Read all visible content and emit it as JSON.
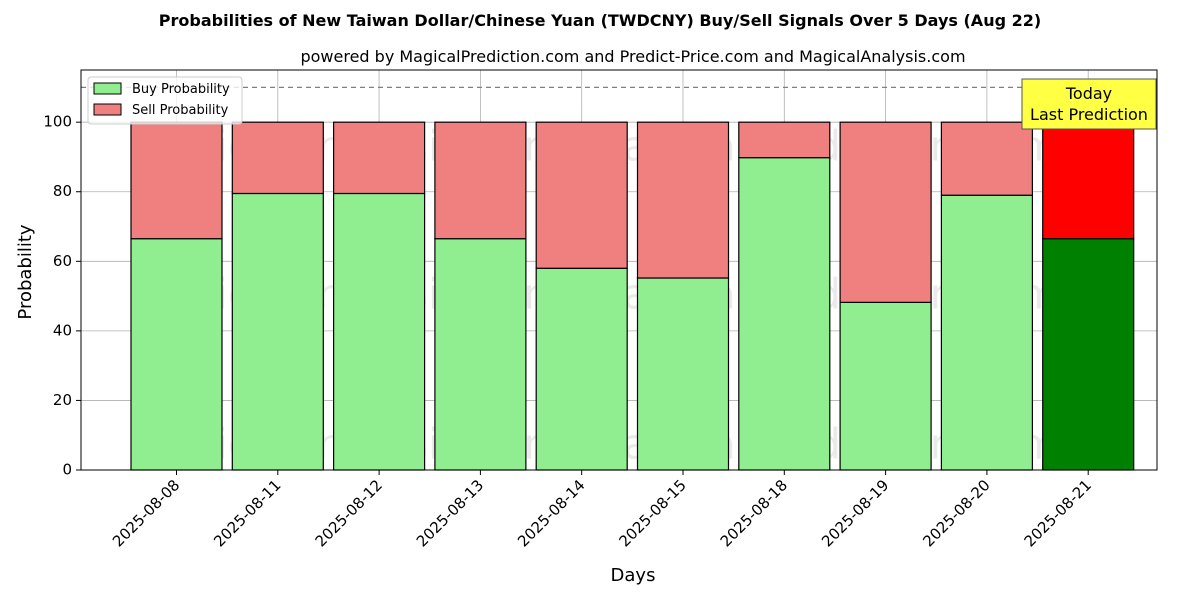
{
  "chart_data": {
    "type": "bar",
    "stacked": true,
    "title": "Probabilities of New Taiwan Dollar/Chinese Yuan (TWDCNY) Buy/Sell Signals Over 5 Days (Aug 22)",
    "subtitle": "powered by MagicalPrediction.com and Predict-Price.com and MagicalAnalysis.com",
    "xlabel": "Days",
    "ylabel": "Probability",
    "ylim": [
      0,
      115
    ],
    "yticks": [
      0,
      20,
      40,
      60,
      80,
      100
    ],
    "reference_line": 110,
    "grid": true,
    "legend_position": "top-left",
    "categories": [
      "2025-08-08",
      "2025-08-11",
      "2025-08-12",
      "2025-08-13",
      "2025-08-14",
      "2025-08-15",
      "2025-08-18",
      "2025-08-19",
      "2025-08-20",
      "2025-08-21"
    ],
    "series": [
      {
        "name": "Buy Probability",
        "values": [
          66.5,
          79.5,
          79.5,
          66.5,
          58.0,
          55.2,
          89.8,
          48.2,
          79.0,
          66.5
        ],
        "color": "#90ee90",
        "highlight_color": "#008000"
      },
      {
        "name": "Sell Probability",
        "values": [
          33.5,
          20.5,
          20.5,
          33.5,
          42.0,
          44.8,
          10.2,
          51.8,
          21.0,
          33.5
        ],
        "color": "#f08080",
        "highlight_color": "#ff0000"
      }
    ],
    "highlight_index": 9,
    "annotation": {
      "lines": [
        "Today",
        "Last Prediction"
      ],
      "background": "#ffff44"
    },
    "watermarks": [
      "MagicalAnalysis.com",
      "MagicalPrediction.com"
    ]
  }
}
